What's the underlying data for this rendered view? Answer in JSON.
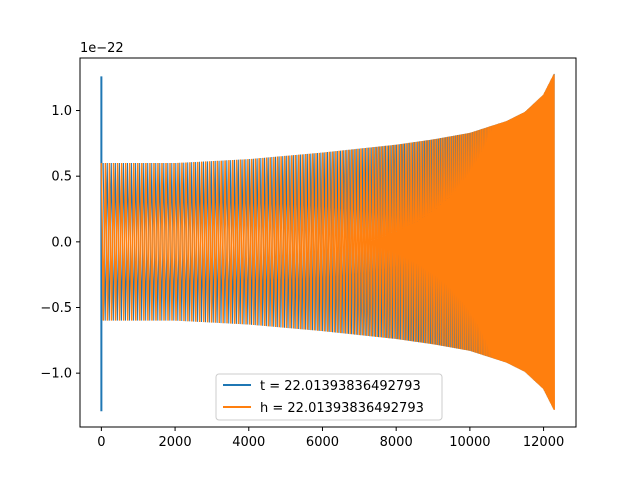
{
  "chart_data": {
    "type": "line",
    "title": "",
    "xlabel": "",
    "ylabel": "",
    "y_offset_label": "1e−22",
    "xlim": [
      -580,
      12880
    ],
    "ylim": [
      -1.41,
      1.4
    ],
    "grid": false,
    "legend_position": "lower-center",
    "x_ticks": [
      {
        "value": 0,
        "label": "0"
      },
      {
        "value": 2000,
        "label": "2000"
      },
      {
        "value": 4000,
        "label": "4000"
      },
      {
        "value": 6000,
        "label": "6000"
      },
      {
        "value": 8000,
        "label": "8000"
      },
      {
        "value": 10000,
        "label": "10000"
      },
      {
        "value": 12000,
        "label": "12000"
      }
    ],
    "y_ticks": [
      {
        "value": -1.0,
        "label": "−1.0"
      },
      {
        "value": -0.5,
        "label": "−0.5"
      },
      {
        "value": 0.0,
        "label": "0.0"
      },
      {
        "value": 0.5,
        "label": "0.5"
      },
      {
        "value": 1.0,
        "label": "1.0"
      }
    ],
    "series": [
      {
        "name": "t = 22.01393836492793",
        "color": "#1f77b4",
        "description": "impulse at x=0 then chirp oscillation",
        "spike": {
          "x": 0,
          "ymin": -1.29,
          "ymax": 1.26
        },
        "envelope": {
          "x": [
            50,
            2000,
            4000,
            6000,
            8000,
            9000,
            10000,
            11000,
            11500,
            12000,
            12290
          ],
          "amp": [
            0.6,
            0.6,
            0.63,
            0.68,
            0.74,
            0.78,
            0.83,
            0.92,
            0.99,
            1.12,
            1.28
          ]
        }
      },
      {
        "name": "h = 22.01393836492793",
        "color": "#ff7f0e",
        "description": "chirp signal with growing amplitude",
        "envelope": {
          "x": [
            0,
            2000,
            4000,
            6000,
            8000,
            9000,
            10000,
            11000,
            11500,
            12000,
            12290
          ],
          "amp": [
            0.6,
            0.6,
            0.63,
            0.68,
            0.74,
            0.78,
            0.83,
            0.92,
            0.99,
            1.12,
            1.28
          ]
        }
      }
    ]
  }
}
